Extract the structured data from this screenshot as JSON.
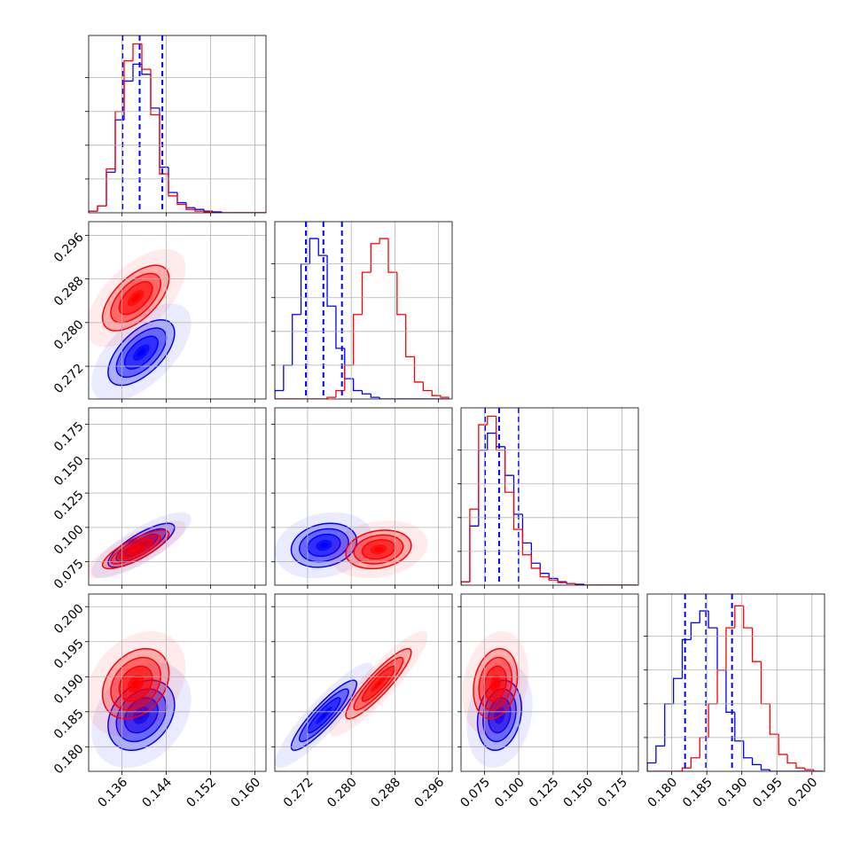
{
  "chart_data": {
    "type": "corner",
    "axes": [
      {
        "lim": [
          0.13,
          0.162
        ],
        "ticks": [
          0.136,
          0.144,
          0.152,
          {
            "value": 0.16,
            "label": "0.160"
          }
        ],
        "bins": [
          0.13,
          0.1316,
          0.1332,
          0.1348,
          0.1364,
          0.138,
          0.1396,
          0.1412,
          0.1428,
          0.1444,
          0.146,
          0.1476,
          0.1492,
          0.1508,
          0.1524,
          0.154,
          0.1556,
          0.1572,
          0.1588,
          0.1604,
          0.162
        ],
        "quantiles": [
          0.1361,
          0.1392,
          0.1433
        ]
      },
      {
        "lim": [
          0.266,
          0.2985
        ],
        "ticks": [
          0.272,
          {
            "value": 0.28,
            "label": "0.280"
          },
          0.288,
          0.296
        ],
        "bins": [
          0.266,
          0.2676,
          0.2692,
          0.2708,
          0.2724,
          0.274,
          0.2756,
          0.2772,
          0.2788,
          0.2804,
          0.282,
          0.2836,
          0.2852,
          0.2868,
          0.2884,
          0.29,
          0.2916,
          0.2932,
          0.2948,
          0.2964,
          0.298
        ],
        "quantiles": [
          0.2717,
          0.2749,
          0.2783
        ]
      },
      {
        "lim": [
          0.058,
          0.187
        ],
        "ticks": [
          0.075,
          {
            "value": 0.1,
            "label": "0.100"
          },
          0.125,
          {
            "value": 0.15,
            "label": "0.150"
          },
          0.175
        ],
        "bins": [
          0.058,
          0.0644,
          0.0708,
          0.0772,
          0.0836,
          0.09,
          0.0964,
          0.1028,
          0.1092,
          0.1156,
          0.122,
          0.1284,
          0.1348,
          0.1412,
          0.1476,
          0.154,
          0.1604,
          0.1668,
          0.1732,
          0.1796,
          0.186
        ],
        "quantiles": [
          0.0754,
          0.0857,
          0.0999
        ]
      },
      {
        "lim": [
          0.1765,
          0.2018
        ],
        "ticks": [
          {
            "value": 0.18,
            "label": "0.180"
          },
          0.185,
          {
            "value": 0.19,
            "label": "0.190"
          },
          0.195,
          {
            "value": 0.2,
            "label": "0.200"
          }
        ],
        "bins": [
          0.1765,
          0.17775,
          0.179,
          0.18025,
          0.1815,
          0.18275,
          0.184,
          0.18525,
          0.1865,
          0.18775,
          0.189,
          0.19025,
          0.1915,
          0.19275,
          0.194,
          0.19525,
          0.1965,
          0.19775,
          0.199,
          0.20025,
          0.2015
        ],
        "quantiles": [
          0.1819,
          0.1849,
          0.1886
        ]
      }
    ],
    "hist_ylim": [
      0,
      1.05
    ],
    "hist_yticks": [
      0.2,
      0.4,
      0.6,
      0.8
    ],
    "quantile_color": "#0000ff",
    "grid": true,
    "series": [
      {
        "color": "#0000ff",
        "counts": [
          [
            0.01,
            0.04,
            0.24,
            0.55,
            0.78,
            0.88,
            0.82,
            0.62,
            0.27,
            0.12,
            0.06,
            0.03,
            0.02,
            0.01,
            0.005,
            0,
            0,
            0,
            0,
            0
          ],
          [
            0.05,
            0.2,
            0.5,
            0.8,
            0.95,
            0.85,
            0.55,
            0.3,
            0.12,
            0.05,
            0.03,
            0.01,
            0,
            0,
            0,
            0,
            0,
            0,
            0,
            0
          ],
          [
            0.02,
            0.35,
            0.8,
            0.9,
            0.82,
            0.65,
            0.42,
            0.25,
            0.13,
            0.07,
            0.04,
            0.02,
            0.01,
            0.005,
            0,
            0,
            0,
            0,
            0,
            0
          ],
          [
            0.05,
            0.15,
            0.4,
            0.55,
            0.78,
            0.88,
            0.95,
            0.85,
            0.6,
            0.35,
            0.18,
            0.08,
            0.04,
            0.01,
            0,
            0,
            0,
            0,
            0,
            0
          ]
        ],
        "densities": [
          {
            "pair": [
              0,
              1
            ],
            "mean_x": 0.1395,
            "mean_y": 0.2745,
            "sd_x": 0.003,
            "sd_y": 0.003,
            "rho": 0.6
          },
          {
            "pair": [
              0,
              2
            ],
            "mean_x": 0.1395,
            "mean_y": 0.087,
            "sd_x": 0.003,
            "sd_y": 0.008,
            "rho": 0.8
          },
          {
            "pair": [
              1,
              2
            ],
            "mean_x": 0.275,
            "mean_y": 0.087,
            "sd_x": 0.003,
            "sd_y": 0.008,
            "rho": 0.2
          },
          {
            "pair": [
              0,
              3
            ],
            "mean_x": 0.1395,
            "mean_y": 0.1845,
            "sd_x": 0.003,
            "sd_y": 0.0025,
            "rho": 0.3
          },
          {
            "pair": [
              1,
              3
            ],
            "mean_x": 0.275,
            "mean_y": 0.1845,
            "sd_x": 0.003,
            "sd_y": 0.0025,
            "rho": 0.9
          },
          {
            "pair": [
              2,
              3
            ],
            "mean_x": 0.086,
            "mean_y": 0.1845,
            "sd_x": 0.008,
            "sd_y": 0.0025,
            "rho": 0.2
          }
        ]
      },
      {
        "color": "#ff0000",
        "counts": [
          [
            0.01,
            0.04,
            0.26,
            0.6,
            0.9,
            1.0,
            0.85,
            0.58,
            0.23,
            0.1,
            0.05,
            0.02,
            0.01,
            0.005,
            0,
            0,
            0,
            0,
            0,
            0
          ],
          [
            0,
            0,
            0,
            0,
            0,
            0,
            0.01,
            0.05,
            0.2,
            0.5,
            0.75,
            0.92,
            0.95,
            0.75,
            0.5,
            0.25,
            0.1,
            0.05,
            0.02,
            0.01
          ],
          [
            0.02,
            0.45,
            0.95,
            1.0,
            0.8,
            0.55,
            0.33,
            0.18,
            0.1,
            0.05,
            0.03,
            0.015,
            0.01,
            0,
            0,
            0,
            0,
            0,
            0,
            0
          ],
          [
            0,
            0,
            0,
            0,
            0.02,
            0.08,
            0.2,
            0.4,
            0.6,
            0.85,
            0.98,
            0.85,
            0.65,
            0.4,
            0.22,
            0.1,
            0.05,
            0.02,
            0.01,
            0
          ]
        ],
        "densities": [
          {
            "pair": [
              0,
              1
            ],
            "mean_x": 0.1385,
            "mean_y": 0.2845,
            "sd_x": 0.003,
            "sd_y": 0.003,
            "rho": 0.6
          },
          {
            "pair": [
              0,
              2
            ],
            "mean_x": 0.1385,
            "mean_y": 0.084,
            "sd_x": 0.003,
            "sd_y": 0.007,
            "rho": 0.8
          },
          {
            "pair": [
              1,
              2
            ],
            "mean_x": 0.285,
            "mean_y": 0.084,
            "sd_x": 0.003,
            "sd_y": 0.007,
            "rho": 0.2
          },
          {
            "pair": [
              0,
              3
            ],
            "mean_x": 0.1385,
            "mean_y": 0.189,
            "sd_x": 0.003,
            "sd_y": 0.0025,
            "rho": 0.3
          },
          {
            "pair": [
              1,
              3
            ],
            "mean_x": 0.285,
            "mean_y": 0.189,
            "sd_x": 0.003,
            "sd_y": 0.0025,
            "rho": 0.9
          },
          {
            "pair": [
              2,
              3
            ],
            "mean_x": 0.083,
            "mean_y": 0.189,
            "sd_x": 0.008,
            "sd_y": 0.0025,
            "rho": 0.2
          }
        ]
      }
    ]
  }
}
